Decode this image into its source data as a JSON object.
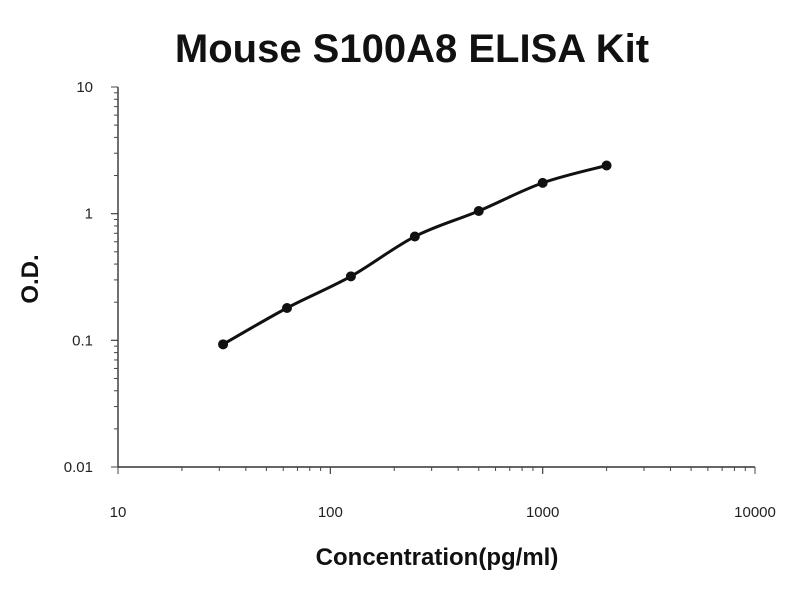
{
  "chart_data": {
    "type": "scatter",
    "title": "Mouse S100A8 ELISA Kit",
    "xlabel": "Concentration(pg/ml)",
    "ylabel": "O.D.",
    "xscale": "log",
    "yscale": "log",
    "xlim": [
      10,
      10000
    ],
    "ylim": [
      0.01,
      10
    ],
    "x_ticks": [
      "10",
      "100",
      "1000",
      "10000"
    ],
    "y_ticks": [
      "0.01",
      "0.1",
      "1",
      "10"
    ],
    "grid": false,
    "legend": "none",
    "fit_line": true,
    "series": [
      {
        "x": [
          31.25,
          62.5,
          125,
          250,
          500,
          1000,
          2000
        ],
        "y": [
          0.093,
          0.18,
          0.32,
          0.66,
          1.05,
          1.75,
          2.4
        ]
      }
    ]
  }
}
